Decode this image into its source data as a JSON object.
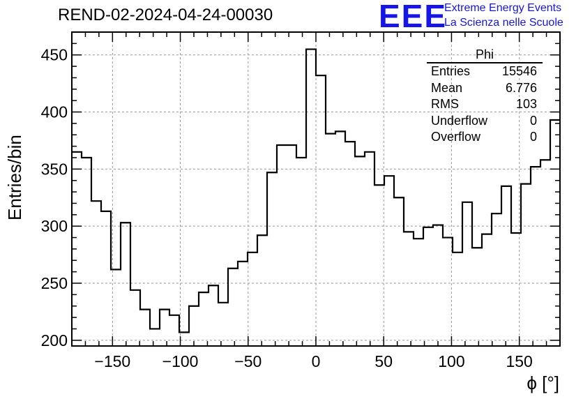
{
  "chart_data": {
    "type": "histogram",
    "title": "REND-02-2024-04-24-00030",
    "xlabel": "ϕ [°]",
    "ylabel": "Entries/bin",
    "xlim": [
      -180,
      180
    ],
    "ylim": [
      195,
      470
    ],
    "x_ticks": [
      -150,
      -100,
      -50,
      0,
      50,
      100,
      150
    ],
    "y_ticks": [
      200,
      250,
      300,
      350,
      400,
      450
    ],
    "grid": true,
    "bin_width": 7.2,
    "bin_edges_start": -180,
    "values": [
      365,
      360,
      322,
      313,
      262,
      303,
      244,
      227,
      210,
      227,
      222,
      207,
      230,
      242,
      248,
      233,
      263,
      269,
      277,
      292,
      347,
      371,
      371,
      360,
      455,
      432,
      381,
      383,
      374,
      361,
      365,
      336,
      344,
      325,
      295,
      289,
      299,
      301,
      290,
      277,
      321,
      281,
      293,
      311,
      335,
      294,
      337,
      352,
      358,
      393
    ],
    "stats_box": {
      "title": "Phi",
      "rows": [
        {
          "label": "Entries",
          "value": "15546"
        },
        {
          "label": "Mean",
          "value": "6.776"
        },
        {
          "label": "RMS",
          "value": "103"
        },
        {
          "label": "Underflow",
          "value": "0"
        },
        {
          "label": "Overflow",
          "value": "0"
        }
      ]
    }
  },
  "logo": {
    "mark": "EEE",
    "line1": "Extreme Energy Events",
    "line2": "La Scienza nelle Scuole"
  }
}
